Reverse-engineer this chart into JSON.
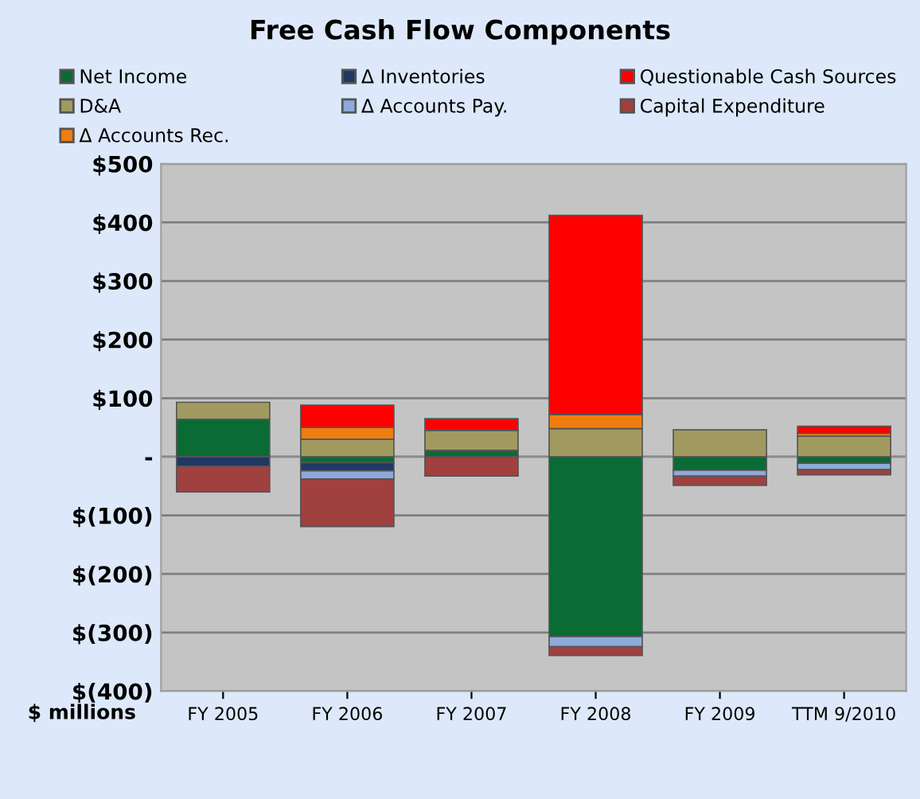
{
  "chart_data": {
    "type": "bar",
    "stacked": true,
    "title": "Free Cash Flow Components",
    "ylabel": "$ millions",
    "categories": [
      "FY 2005",
      "FY 2006",
      "FY 2007",
      "FY 2008",
      "FY 2009",
      "TTM 9/2010"
    ],
    "series": [
      {
        "name": "Net Income",
        "color": "#0a6b35",
        "values": [
          64,
          -10,
          11,
          -307,
          -23,
          -11
        ]
      },
      {
        "name": "D&A",
        "color": "#a09a60",
        "values": [
          29,
          30,
          34,
          48,
          46,
          35
        ]
      },
      {
        "name": "Δ Accounts Rec.",
        "color": "#f07d10",
        "values": [
          null,
          20,
          null,
          24,
          null,
          5
        ]
      },
      {
        "name": "Δ Inventories",
        "color": "#1f3864",
        "values": [
          -16,
          -14,
          null,
          null,
          null,
          null
        ]
      },
      {
        "name": "Δ Accounts Pay.",
        "color": "#8eaadb",
        "values": [
          null,
          -14,
          null,
          -17,
          -10,
          -11
        ]
      },
      {
        "name": "Questionable Cash Sources",
        "color": "#ff0000",
        "values": [
          null,
          38,
          20,
          340,
          null,
          12
        ]
      },
      {
        "name": "Capital Expenditure",
        "color": "#a0403f",
        "values": [
          -44,
          -81,
          -33,
          -15,
          -16,
          -9
        ]
      }
    ],
    "ylim": [
      -400,
      500
    ],
    "yticks": [
      {
        "value": -400,
        "label": "$(400)"
      },
      {
        "value": -300,
        "label": "$(300)"
      },
      {
        "value": -200,
        "label": "$(200)"
      },
      {
        "value": -100,
        "label": "$(100)"
      },
      {
        "value": 0,
        "label": "-"
      },
      {
        "value": 100,
        "label": "$100"
      },
      {
        "value": 200,
        "label": "$200"
      },
      {
        "value": 300,
        "label": "$300"
      },
      {
        "value": 400,
        "label": "$400"
      },
      {
        "value": 500,
        "label": "$500"
      }
    ],
    "grid": "y",
    "legend": "top"
  }
}
